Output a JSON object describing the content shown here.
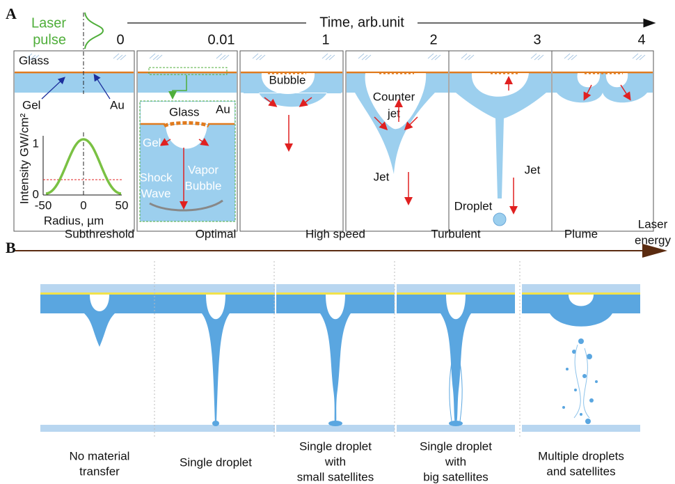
{
  "panel_a": {
    "label": "A",
    "laser_pulse": [
      "Laser",
      "pulse"
    ],
    "time_axis": "Time, arb.unit",
    "times": [
      0,
      0.01,
      1,
      2,
      3,
      4
    ],
    "frame0": {
      "glass": "Glass",
      "gel": "Gel",
      "au": "Au"
    },
    "inset_plot": {
      "y_label": "Intensity GW/cm²",
      "x_label": "Radius, µm",
      "y_ticks": [
        0,
        1
      ],
      "x_ticks": [
        -50,
        0,
        50
      ]
    },
    "zoom": {
      "glass": "Glass",
      "au": "Au",
      "gel": "Gel",
      "vapor_bubble": [
        "Vapor",
        "Bubble"
      ],
      "shock_wave": [
        "Shock",
        "Wave"
      ]
    },
    "frame1": {
      "bubble": "Bubble"
    },
    "frame2": {
      "counter_jet": [
        "Counter",
        "jet"
      ],
      "jet": "Jet"
    },
    "frame3": {
      "jet": "Jet",
      "droplet": "Droplet"
    }
  },
  "panel_b": {
    "label": "B",
    "axis": [
      "Laser",
      "energy"
    ],
    "regimes": [
      {
        "name": "Subthreshold",
        "description": [
          "No material",
          "transfer"
        ]
      },
      {
        "name": "Optimal",
        "description": [
          "Single droplet"
        ]
      },
      {
        "name": "High speed",
        "description": [
          "Single droplet",
          "with",
          "small satellites"
        ]
      },
      {
        "name": "Turbulent",
        "description": [
          "Single droplet",
          "with",
          "big satellites"
        ]
      },
      {
        "name": "Plume",
        "description": [
          "Multiple droplets",
          "and satellites"
        ]
      }
    ]
  }
}
